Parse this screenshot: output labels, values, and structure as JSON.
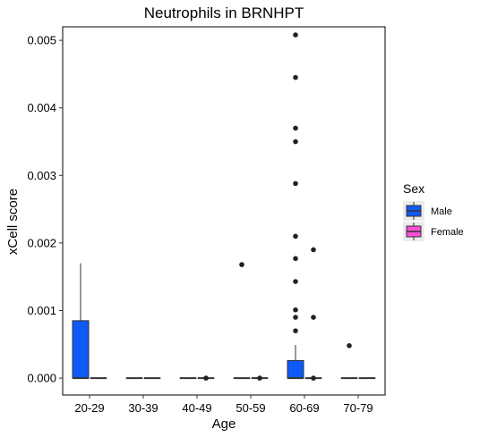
{
  "chart_data": {
    "type": "box",
    "title": "Neutrophils in BRNHPT",
    "xlabel": "Age",
    "ylabel": "xCell score",
    "categories": [
      "20-29",
      "30-39",
      "40-49",
      "50-59",
      "60-69",
      "70-79"
    ],
    "y_ticks": [
      "0.000",
      "0.001",
      "0.002",
      "0.003",
      "0.004",
      "0.005"
    ],
    "ylim": [
      -0.00025,
      0.0052
    ],
    "legend": {
      "title": "Sex",
      "placement": "right",
      "entries": [
        "Male",
        "Female"
      ]
    },
    "series": [
      {
        "name": "Male",
        "color": "#0f5af7",
        "boxes": [
          {
            "category": "20-29",
            "q1": 0.0,
            "median": 0.0,
            "q3": 0.00085,
            "whisker_low": 0.0,
            "whisker_high": 0.0017,
            "outliers": []
          },
          {
            "category": "30-39",
            "q1": 0.0,
            "median": 0.0,
            "q3": 0.0,
            "whisker_low": 0.0,
            "whisker_high": 0.0,
            "outliers": []
          },
          {
            "category": "40-49",
            "q1": 0.0,
            "median": 0.0,
            "q3": 0.0,
            "whisker_low": 0.0,
            "whisker_high": 0.0,
            "outliers": []
          },
          {
            "category": "50-59",
            "q1": 0.0,
            "median": 0.0,
            "q3": 0.0,
            "whisker_low": 0.0,
            "whisker_high": 0.0,
            "outliers": [
              0.00168
            ]
          },
          {
            "category": "60-69",
            "q1": 0.0,
            "median": 0.0,
            "q3": 0.00026,
            "whisker_low": 0.0,
            "whisker_high": 0.00049,
            "outliers": [
              0.00508,
              0.00445,
              0.0037,
              0.0035,
              0.00288,
              0.0021,
              0.00177,
              0.00143,
              0.00101,
              0.0009,
              0.0007
            ]
          },
          {
            "category": "70-79",
            "q1": 0.0,
            "median": 0.0,
            "q3": 0.0,
            "whisker_low": 0.0,
            "whisker_high": 0.0,
            "outliers": [
              0.00048
            ]
          }
        ]
      },
      {
        "name": "Female",
        "color": "#ff4fd8",
        "boxes": [
          {
            "category": "20-29",
            "q1": 0.0,
            "median": 0.0,
            "q3": 0.0,
            "whisker_low": 0.0,
            "whisker_high": 0.0,
            "outliers": []
          },
          {
            "category": "30-39",
            "q1": 0.0,
            "median": 0.0,
            "q3": 0.0,
            "whisker_low": 0.0,
            "whisker_high": 0.0,
            "outliers": []
          },
          {
            "category": "40-49",
            "q1": 0.0,
            "median": 0.0,
            "q3": 0.0,
            "whisker_low": 0.0,
            "whisker_high": 0.0,
            "outliers": [
              0.0
            ]
          },
          {
            "category": "50-59",
            "q1": 0.0,
            "median": 0.0,
            "q3": 0.0,
            "whisker_low": 0.0,
            "whisker_high": 0.0,
            "outliers": [
              0.0
            ]
          },
          {
            "category": "60-69",
            "q1": 0.0,
            "median": 0.0,
            "q3": 0.0,
            "whisker_low": 0.0,
            "whisker_high": 0.0,
            "outliers": [
              0.0019,
              0.0009,
              0.0
            ]
          },
          {
            "category": "70-79",
            "q1": 0.0,
            "median": 0.0,
            "q3": 0.0,
            "whisker_low": 0.0,
            "whisker_high": 0.0,
            "outliers": []
          }
        ]
      }
    ],
    "grid": false
  }
}
